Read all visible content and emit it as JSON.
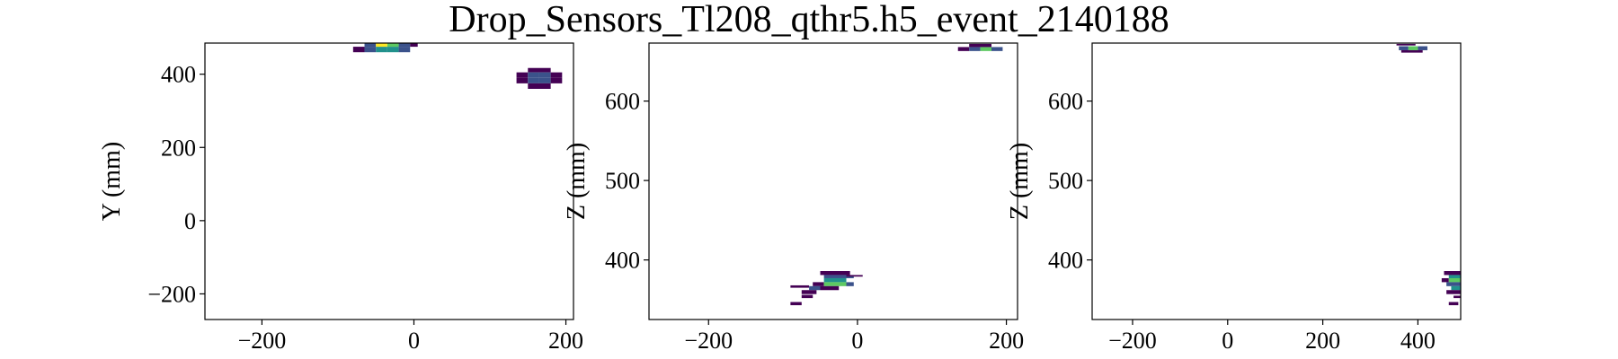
{
  "title": "Drop_Sensors_Tl208_qthr5.h5_event_2140188",
  "colormap": [
    "#440154",
    "#3b528b",
    "#21918c",
    "#5ec962",
    "#fde725"
  ],
  "chart_data": [
    {
      "type": "heatmap",
      "xlabel": "",
      "ylabel": "Y (mm)",
      "xlim": [
        -275,
        210
      ],
      "ylim": [
        -270,
        485
      ],
      "xticks": [
        -200,
        0,
        200
      ],
      "yticks": [
        -200,
        0,
        200,
        400
      ],
      "cells": [
        {
          "x": -80,
          "y": 460,
          "w": 15,
          "h": 15,
          "v": 0
        },
        {
          "x": -65,
          "y": 460,
          "w": 15,
          "h": 15,
          "v": 1
        },
        {
          "x": -50,
          "y": 460,
          "w": 15,
          "h": 15,
          "v": 2
        },
        {
          "x": -35,
          "y": 460,
          "w": 15,
          "h": 15,
          "v": 2
        },
        {
          "x": -20,
          "y": 460,
          "w": 15,
          "h": 15,
          "v": 1
        },
        {
          "x": -65,
          "y": 475,
          "w": 15,
          "h": 10,
          "v": 1
        },
        {
          "x": -50,
          "y": 475,
          "w": 15,
          "h": 10,
          "v": 4
        },
        {
          "x": -35,
          "y": 475,
          "w": 15,
          "h": 10,
          "v": 3
        },
        {
          "x": -20,
          "y": 475,
          "w": 15,
          "h": 10,
          "v": 1
        },
        {
          "x": -5,
          "y": 475,
          "w": 10,
          "h": 10,
          "v": 0
        },
        {
          "x": 150,
          "y": 405,
          "w": 30,
          "h": 12,
          "v": 0
        },
        {
          "x": 135,
          "y": 390,
          "w": 15,
          "h": 15,
          "v": 0
        },
        {
          "x": 150,
          "y": 390,
          "w": 15,
          "h": 15,
          "v": 1
        },
        {
          "x": 165,
          "y": 390,
          "w": 15,
          "h": 15,
          "v": 1
        },
        {
          "x": 180,
          "y": 390,
          "w": 15,
          "h": 15,
          "v": 0
        },
        {
          "x": 135,
          "y": 375,
          "w": 15,
          "h": 15,
          "v": 0
        },
        {
          "x": 150,
          "y": 375,
          "w": 15,
          "h": 15,
          "v": 1
        },
        {
          "x": 165,
          "y": 375,
          "w": 15,
          "h": 15,
          "v": 1
        },
        {
          "x": 180,
          "y": 375,
          "w": 15,
          "h": 15,
          "v": 0
        },
        {
          "x": 150,
          "y": 360,
          "w": 30,
          "h": 15,
          "v": 0
        }
      ]
    },
    {
      "type": "heatmap",
      "xlabel": "",
      "ylabel": "Z (mm)",
      "xlim": [
        -280,
        215
      ],
      "ylim": [
        325,
        673
      ],
      "xticks": [
        -200,
        0,
        200
      ],
      "yticks": [
        400,
        500,
        600
      ],
      "cells": [
        {
          "x": 135,
          "y": 663,
          "w": 15,
          "h": 5,
          "v": 0
        },
        {
          "x": 150,
          "y": 663,
          "w": 15,
          "h": 5,
          "v": 1
        },
        {
          "x": 165,
          "y": 663,
          "w": 15,
          "h": 5,
          "v": 3
        },
        {
          "x": 180,
          "y": 663,
          "w": 15,
          "h": 5,
          "v": 1
        },
        {
          "x": 150,
          "y": 668,
          "w": 30,
          "h": 4,
          "v": 0
        },
        {
          "x": -50,
          "y": 381,
          "w": 40,
          "h": 5,
          "v": 0
        },
        {
          "x": -45,
          "y": 377,
          "w": 40,
          "h": 4,
          "v": 1
        },
        {
          "x": -45,
          "y": 372,
          "w": 30,
          "h": 5,
          "v": 2
        },
        {
          "x": -15,
          "y": 379,
          "w": 22,
          "h": 2,
          "v": 0
        },
        {
          "x": -60,
          "y": 367,
          "w": 15,
          "h": 5,
          "v": 0
        },
        {
          "x": -45,
          "y": 367,
          "w": 30,
          "h": 5,
          "v": 3
        },
        {
          "x": -15,
          "y": 367,
          "w": 10,
          "h": 5,
          "v": 1
        },
        {
          "x": -90,
          "y": 365,
          "w": 25,
          "h": 3,
          "v": 0
        },
        {
          "x": -65,
          "y": 362,
          "w": 15,
          "h": 5,
          "v": 1
        },
        {
          "x": -50,
          "y": 362,
          "w": 25,
          "h": 5,
          "v": 0
        },
        {
          "x": -75,
          "y": 357,
          "w": 20,
          "h": 5,
          "v": 0
        },
        {
          "x": -75,
          "y": 352,
          "w": 15,
          "h": 4,
          "v": 0
        },
        {
          "x": -90,
          "y": 343,
          "w": 15,
          "h": 4,
          "v": 0
        }
      ]
    },
    {
      "type": "heatmap",
      "xlabel": "",
      "ylabel": "Z (mm)",
      "xlim": [
        -285,
        490
      ],
      "ylim": [
        325,
        673
      ],
      "xticks": [
        -200,
        0,
        200,
        400
      ],
      "yticks": [
        400,
        500,
        600
      ],
      "cells": [
        {
          "x": 355,
          "y": 670,
          "w": 40,
          "h": 2,
          "v": 0
        },
        {
          "x": 360,
          "y": 664,
          "w": 20,
          "h": 5,
          "v": 1
        },
        {
          "x": 380,
          "y": 664,
          "w": 20,
          "h": 5,
          "v": 3
        },
        {
          "x": 400,
          "y": 664,
          "w": 20,
          "h": 5,
          "v": 1
        },
        {
          "x": 365,
          "y": 661,
          "w": 45,
          "h": 3,
          "v": 0
        },
        {
          "x": 455,
          "y": 381,
          "w": 35,
          "h": 5,
          "v": 0
        },
        {
          "x": 465,
          "y": 377,
          "w": 25,
          "h": 4,
          "v": 2
        },
        {
          "x": 450,
          "y": 372,
          "w": 15,
          "h": 5,
          "v": 0
        },
        {
          "x": 465,
          "y": 372,
          "w": 25,
          "h": 5,
          "v": 3
        },
        {
          "x": 460,
          "y": 367,
          "w": 30,
          "h": 5,
          "v": 1
        },
        {
          "x": 470,
          "y": 362,
          "w": 20,
          "h": 5,
          "v": 2
        },
        {
          "x": 460,
          "y": 357,
          "w": 30,
          "h": 5,
          "v": 0
        },
        {
          "x": 475,
          "y": 352,
          "w": 15,
          "h": 3,
          "v": 0
        },
        {
          "x": 465,
          "y": 343,
          "w": 20,
          "h": 4,
          "v": 0
        }
      ]
    }
  ]
}
